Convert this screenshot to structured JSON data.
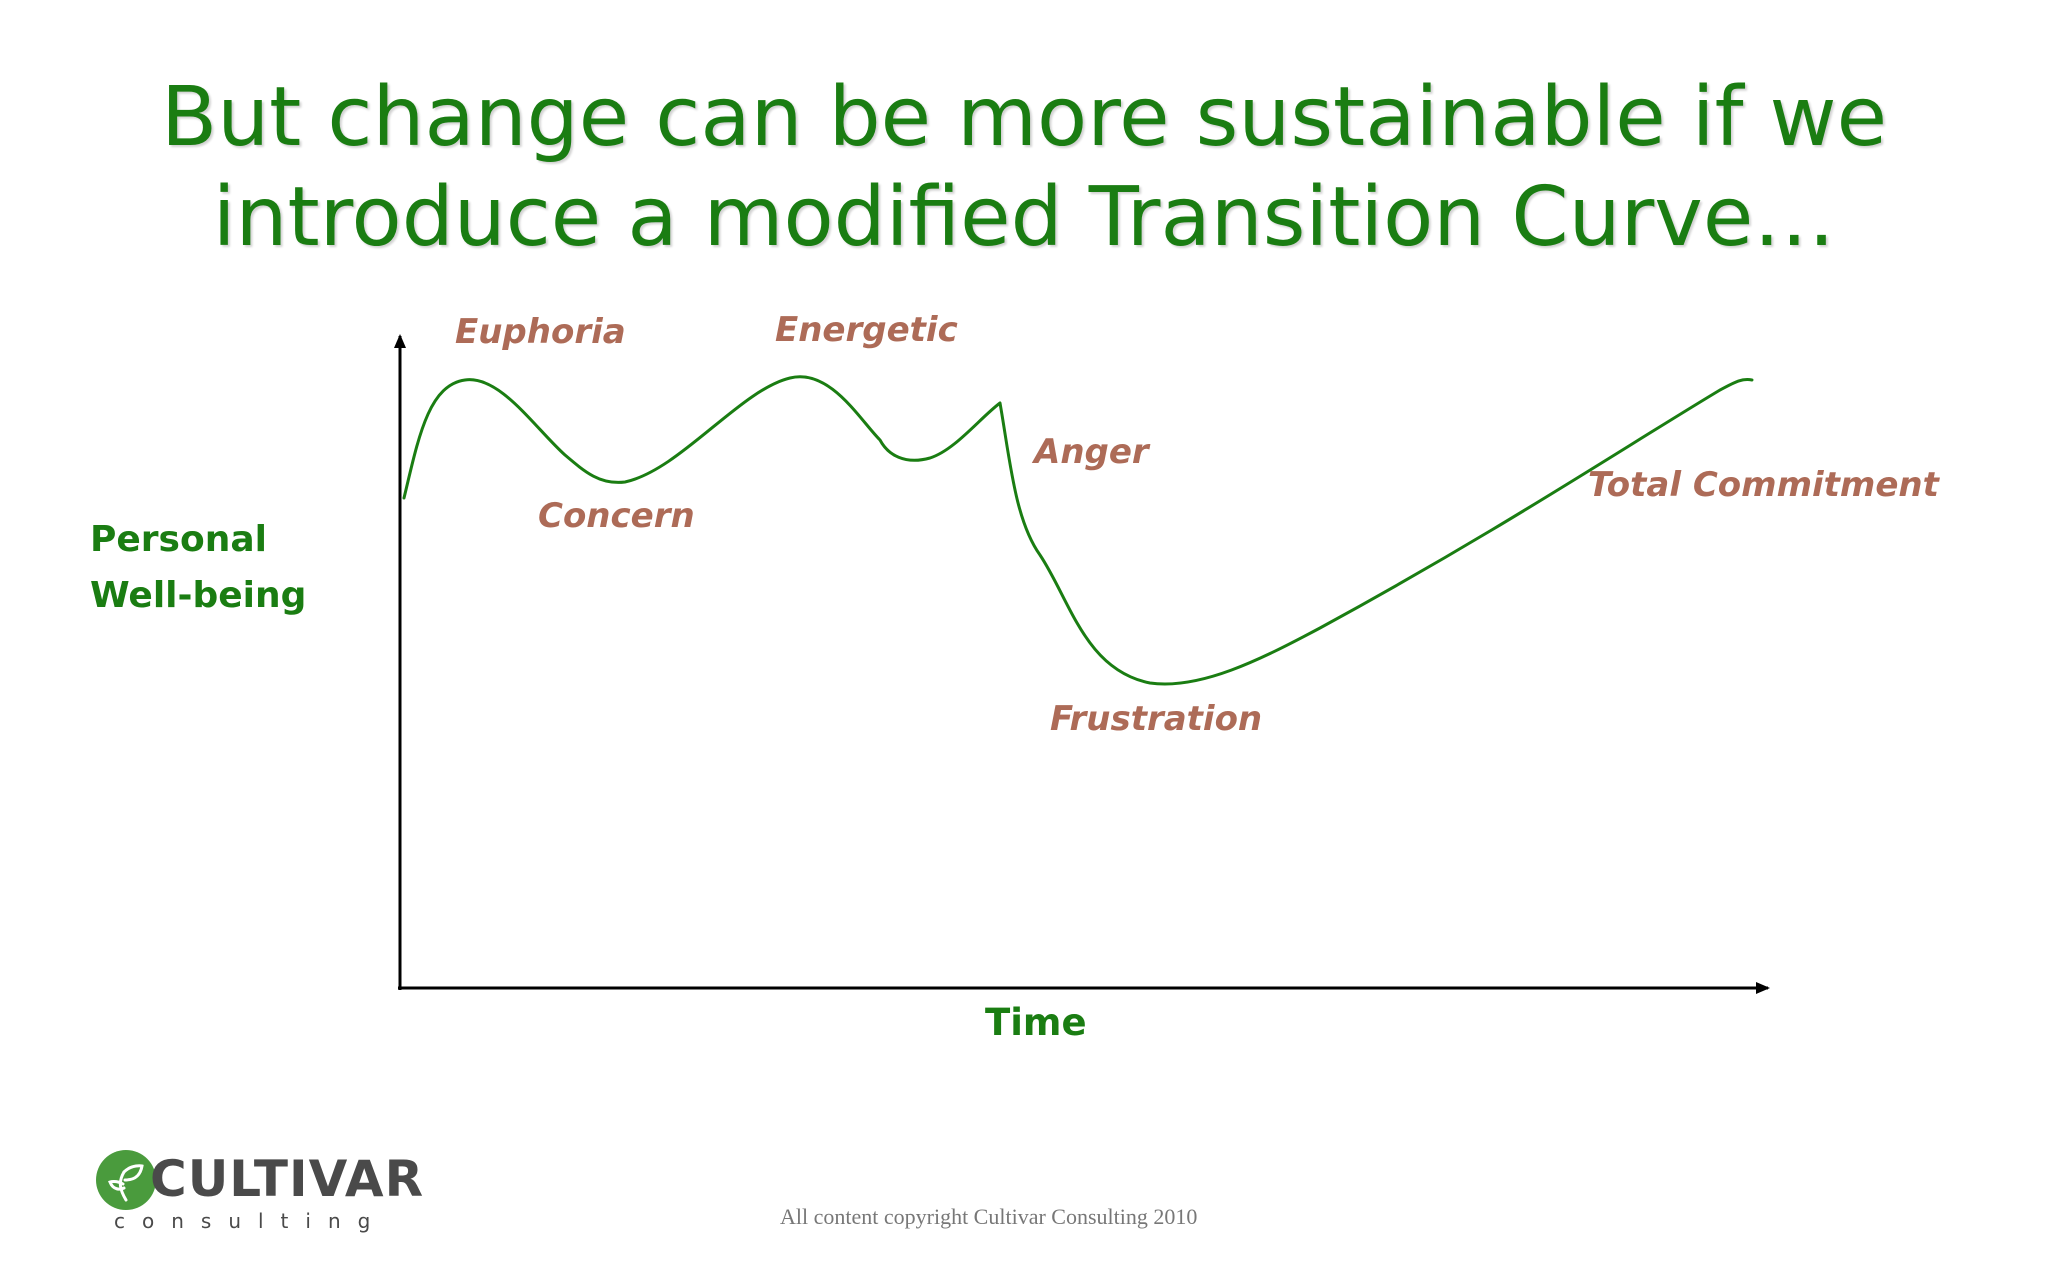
{
  "slide": {
    "title_line1": "But change can be more sustainable if we",
    "title_line2": "introduce a modified Transition Curve…",
    "copyright": "All content copyright Cultivar Consulting 2010"
  },
  "diagram": {
    "y_axis_label_line1": "Personal",
    "y_axis_label_line2": "Well-being",
    "x_axis_label": "Time",
    "stages": {
      "euphoria": "Euphoria",
      "energetic": "Energetic",
      "concern": "Concern",
      "anger": "Anger",
      "frustration": "Frustration",
      "total_commitment": "Total Commitment"
    }
  },
  "logo": {
    "name": "CULTIVAR",
    "sub": "consulting",
    "icon": "leaf-icon"
  },
  "colors": {
    "title": "#1a7d12",
    "curve": "#1a7d12",
    "stage_label": "#ad6b57",
    "axis": "#000000",
    "logo_green": "#4a9b3d",
    "logo_text": "#4a4a4a"
  }
}
